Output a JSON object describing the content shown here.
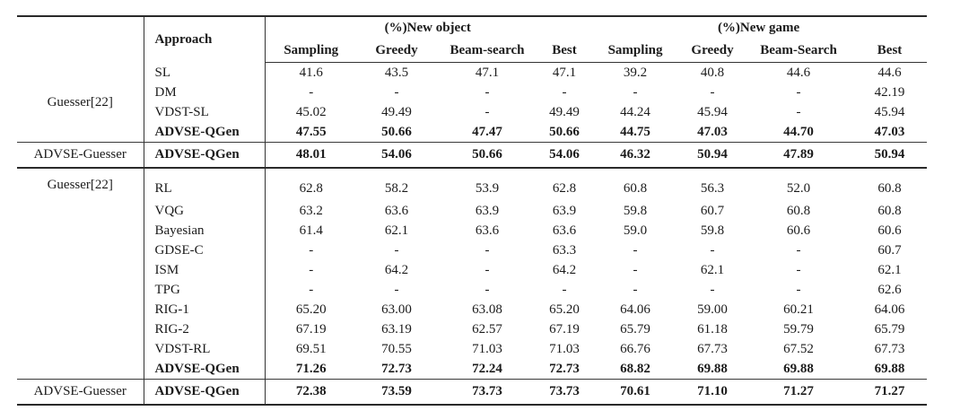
{
  "colors": {
    "background": "#ffffff",
    "text": "#1b1b1b",
    "rule_thick": "#2a2a2a",
    "rule_thin": "#333333"
  },
  "table": {
    "columns": {
      "approach": "Approach",
      "groups": [
        {
          "label": "(%)New object",
          "cols": [
            "Sampling",
            "Greedy",
            "Beam-search",
            "Best"
          ]
        },
        {
          "label": "(%)New game",
          "cols": [
            "Sampling",
            "Greedy",
            "Beam-Search",
            "Best"
          ]
        }
      ]
    },
    "sections": [
      {
        "group_label": "Guesser[22]",
        "rows": [
          {
            "approach": "SL",
            "bold": false,
            "values": [
              "41.6",
              "43.5",
              "47.1",
              "47.1",
              "39.2",
              "40.8",
              "44.6",
              "44.6"
            ]
          },
          {
            "approach": "DM",
            "bold": false,
            "values": [
              "-",
              "-",
              "-",
              "-",
              "-",
              "-",
              "-",
              "42.19"
            ]
          },
          {
            "approach": "VDST-SL",
            "bold": false,
            "values": [
              "45.02",
              "49.49",
              "-",
              "49.49",
              "44.24",
              "45.94",
              "-",
              "45.94"
            ]
          },
          {
            "approach": "ADVSE-QGen",
            "bold": true,
            "values": [
              "47.55",
              "50.66",
              "47.47",
              "50.66",
              "44.75",
              "47.03",
              "44.70",
              "47.03"
            ]
          }
        ],
        "summary": {
          "group_label": "ADVSE-Guesser",
          "approach": "ADVSE-QGen",
          "values": [
            "48.01",
            "54.06",
            "50.66",
            "54.06",
            "46.32",
            "50.94",
            "47.89",
            "50.94"
          ]
        }
      },
      {
        "group_label": "Guesser[22]",
        "rows": [
          {
            "approach": "RL",
            "bold": false,
            "values": [
              "62.8",
              "58.2",
              "53.9",
              "62.8",
              "60.8",
              "56.3",
              "52.0",
              "60.8"
            ]
          },
          {
            "approach": "VQG",
            "bold": false,
            "values": [
              "63.2",
              "63.6",
              "63.9",
              "63.9",
              "59.8",
              "60.7",
              "60.8",
              "60.8"
            ]
          },
          {
            "approach": "Bayesian",
            "bold": false,
            "values": [
              "61.4",
              "62.1",
              "63.6",
              "63.6",
              "59.0",
              "59.8",
              "60.6",
              "60.6"
            ]
          },
          {
            "approach": "GDSE-C",
            "bold": false,
            "values": [
              "-",
              "-",
              "-",
              "63.3",
              "-",
              "-",
              "-",
              "60.7"
            ]
          },
          {
            "approach": "ISM",
            "bold": false,
            "values": [
              "-",
              "64.2",
              "-",
              "64.2",
              "-",
              "62.1",
              "-",
              "62.1"
            ]
          },
          {
            "approach": "TPG",
            "bold": false,
            "values": [
              "-",
              "-",
              "-",
              "-",
              "-",
              "-",
              "-",
              "62.6"
            ]
          },
          {
            "approach": "RIG-1",
            "bold": false,
            "values": [
              "65.20",
              "63.00",
              "63.08",
              "65.20",
              "64.06",
              "59.00",
              "60.21",
              "64.06"
            ]
          },
          {
            "approach": "RIG-2",
            "bold": false,
            "values": [
              "67.19",
              "63.19",
              "62.57",
              "67.19",
              "65.79",
              "61.18",
              "59.79",
              "65.79"
            ]
          },
          {
            "approach": "VDST-RL",
            "bold": false,
            "values": [
              "69.51",
              "70.55",
              "71.03",
              "71.03",
              "66.76",
              "67.73",
              "67.52",
              "67.73"
            ]
          },
          {
            "approach": "ADVSE-QGen",
            "bold": true,
            "values": [
              "71.26",
              "72.73",
              "72.24",
              "72.73",
              "68.82",
              "69.88",
              "69.88",
              "69.88"
            ]
          }
        ],
        "summary": {
          "group_label": "ADVSE-Guesser",
          "approach": "ADVSE-QGen",
          "values": [
            "72.38",
            "73.59",
            "73.73",
            "73.73",
            "70.61",
            "71.10",
            "71.27",
            "71.27"
          ]
        }
      }
    ]
  }
}
